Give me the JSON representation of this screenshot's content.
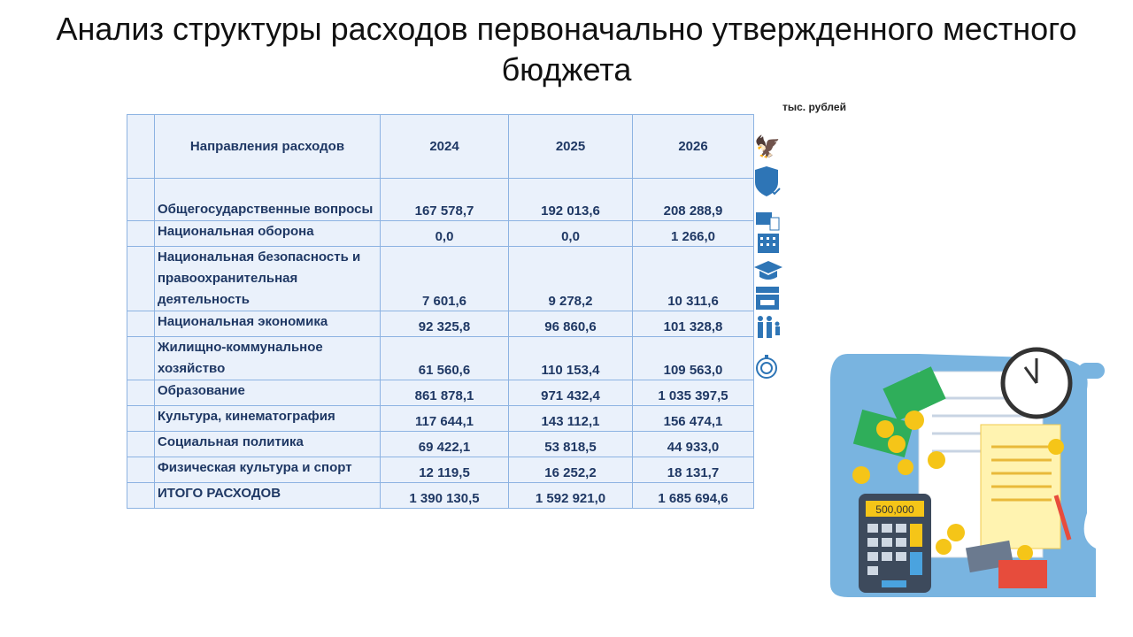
{
  "title": "Анализ структуры расходов первоначально утвержденного местного бюджета",
  "units": "тыс. рублей",
  "table": {
    "headers": [
      "Направления расходов",
      "2024",
      "2025",
      "2026"
    ],
    "rows": [
      {
        "name": "Общегосударственные вопросы",
        "v": [
          "167 578,7",
          "192 013,6",
          "208 288,9"
        ]
      },
      {
        "name": "Национальная оборона",
        "v": [
          "0,0",
          "0,0",
          "1 266,0"
        ]
      },
      {
        "name": "Национальная безопасность и правоохранительная деятельность",
        "v": [
          "7 601,6",
          "9 278,2",
          "10 311,6"
        ]
      },
      {
        "name": "Национальная экономика",
        "v": [
          "92 325,8",
          "96 860,6",
          "101 328,8"
        ]
      },
      {
        "name": "Жилищно-коммунальное хозяйство",
        "v": [
          "61 560,6",
          "110 153,4",
          "109 563,0"
        ]
      },
      {
        "name": "Образование",
        "v": [
          "861 878,1",
          "971 432,4",
          "1 035 397,5"
        ]
      },
      {
        "name": "Культура, кинематография",
        "v": [
          "117 644,1",
          "143 112,1",
          "156 474,1"
        ]
      },
      {
        "name": "Социальная политика",
        "v": [
          "69 422,1",
          "53 818,5",
          "44 933,0"
        ]
      },
      {
        "name": "Физическая культура и спорт",
        "v": [
          "12 119,5",
          "16 252,2",
          "18 131,7"
        ]
      },
      {
        "name": "ИТОГО РАСХОДОВ",
        "v": [
          "1 390 130,5",
          "1 592 921,0",
          "1 685 694,6"
        ]
      }
    ]
  },
  "illustration": {
    "calculator_display": "500,000"
  },
  "icons": [
    "emblem-icon",
    "shield-check-icon",
    "briefcase-doc-icon",
    "building-icon",
    "graduation-cap-icon",
    "clapperboard-icon",
    "family-icon",
    "stopwatch-icon"
  ]
}
